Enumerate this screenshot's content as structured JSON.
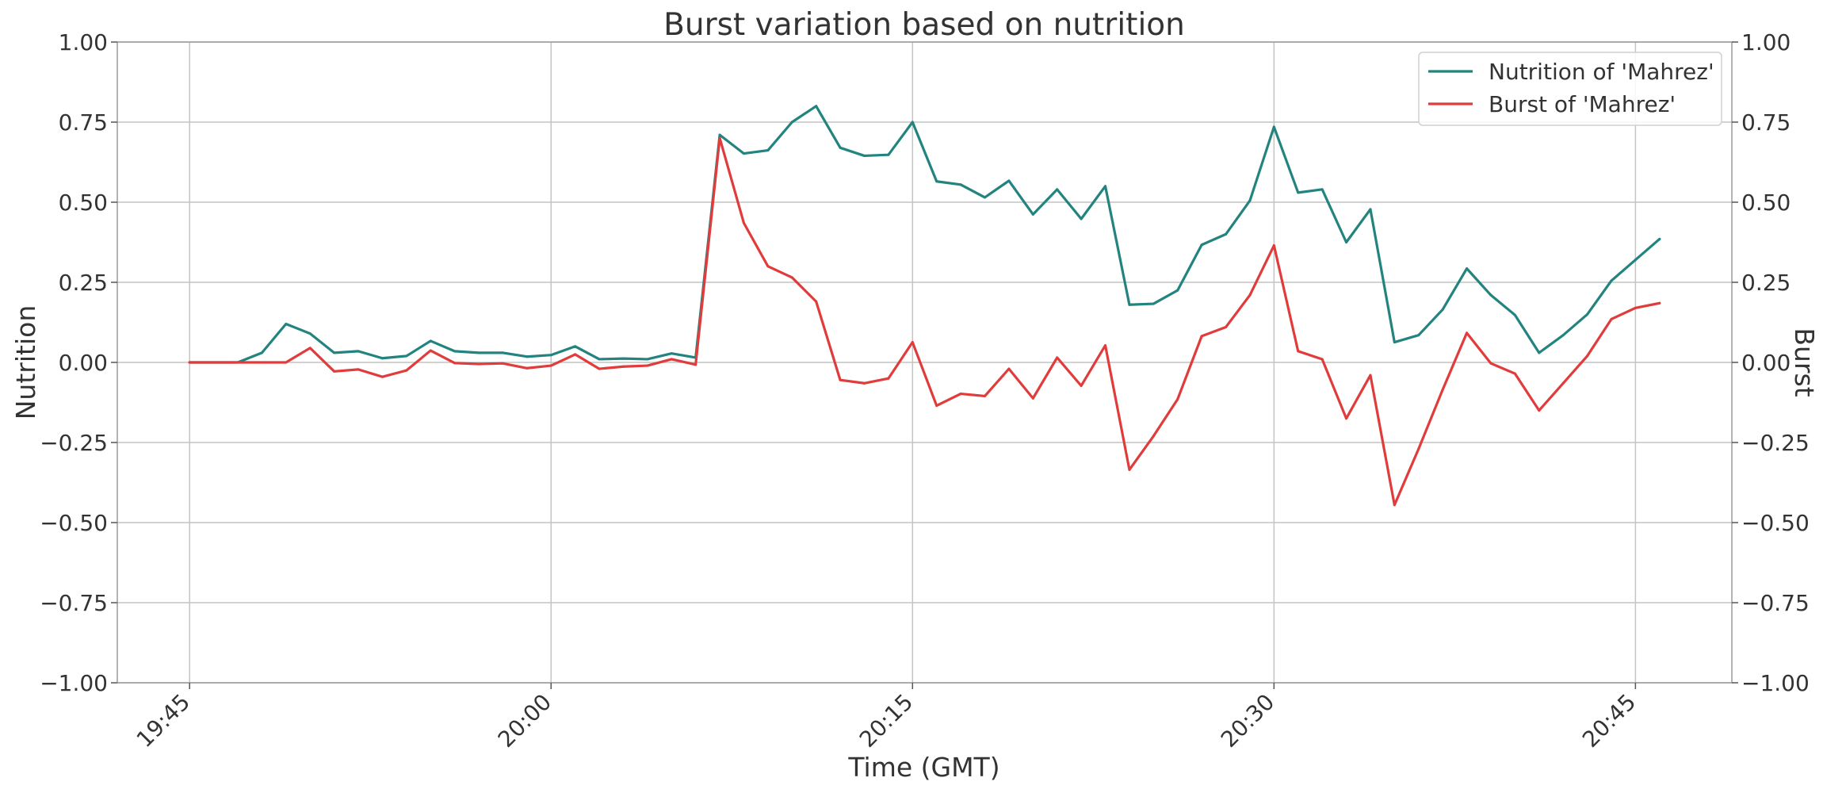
{
  "chart_data": {
    "type": "line",
    "title": "Burst variation based on nutrition",
    "xlabel": "Time (GMT)",
    "ylabel_left": "Nutrition",
    "ylabel_right": "Burst",
    "x_start": "19:45",
    "x_step_minutes": 1,
    "x_tick_labels": [
      "19:45",
      "20:00",
      "20:15",
      "20:30",
      "20:45"
    ],
    "xlim": [
      "19:42",
      "20:49"
    ],
    "ylim_left": [
      -1.0,
      1.0
    ],
    "ylim_right": [
      -1.0,
      1.0
    ],
    "y_tick_labels": [
      "−1.00",
      "−0.75",
      "−0.50",
      "−0.25",
      "0.00",
      "0.25",
      "0.50",
      "0.75",
      "1.00"
    ],
    "grid": true,
    "legend_position": "top-right",
    "series": [
      {
        "name": "Nutrition of 'Mahrez'",
        "color": "#23847f",
        "axis": "left",
        "values": [
          0.0,
          0.0,
          0.0,
          0.03,
          0.12,
          0.09,
          0.03,
          0.035,
          0.013,
          0.02,
          0.067,
          0.035,
          0.03,
          0.03,
          0.018,
          0.023,
          0.05,
          0.01,
          0.012,
          0.01,
          0.028,
          0.015,
          0.71,
          0.652,
          0.662,
          0.75,
          0.8,
          0.67,
          0.645,
          0.648,
          0.75,
          0.565,
          0.555,
          0.515,
          0.567,
          0.462,
          0.54,
          0.448,
          0.55,
          0.18,
          0.183,
          0.225,
          0.367,
          0.4,
          0.505,
          0.735,
          0.53,
          0.54,
          0.375,
          0.478,
          0.063,
          0.085,
          0.165,
          0.293,
          0.21,
          0.148,
          0.03,
          0.085,
          0.15,
          0.255,
          0.32,
          0.385
        ]
      },
      {
        "name": "Burst of 'Mahrez'",
        "color": "#e03c3c",
        "axis": "right",
        "values": [
          0.0,
          0.0,
          0.0,
          0.0,
          0.0,
          0.045,
          -0.028,
          -0.022,
          -0.045,
          -0.025,
          0.037,
          -0.002,
          -0.005,
          -0.003,
          -0.018,
          -0.01,
          0.025,
          -0.02,
          -0.013,
          -0.01,
          0.01,
          -0.007,
          0.7,
          0.435,
          0.3,
          0.265,
          0.19,
          -0.055,
          -0.065,
          -0.05,
          0.063,
          -0.135,
          -0.098,
          -0.105,
          -0.02,
          -0.112,
          0.015,
          -0.073,
          0.053,
          -0.335,
          -0.23,
          -0.115,
          0.082,
          0.11,
          0.21,
          0.365,
          0.035,
          0.01,
          -0.175,
          -0.04,
          -0.445,
          -0.27,
          -0.085,
          0.092,
          -0.003,
          -0.035,
          -0.15,
          -0.065,
          0.02,
          0.135,
          0.17,
          0.185
        ]
      }
    ]
  }
}
